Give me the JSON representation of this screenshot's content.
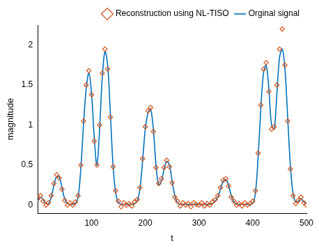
{
  "chart_data": {
    "type": "line",
    "x_label": "t",
    "y_label": "magnitude",
    "x": [
      0,
      5,
      10,
      15,
      20,
      25,
      30,
      35,
      40,
      45,
      50,
      55,
      60,
      65,
      70,
      75,
      80,
      85,
      90,
      95,
      100,
      105,
      110,
      115,
      120,
      125,
      130,
      135,
      140,
      145,
      150,
      155,
      160,
      165,
      170,
      175,
      180,
      185,
      190,
      195,
      200,
      205,
      210,
      215,
      220,
      225,
      230,
      235,
      240,
      245,
      250,
      255,
      260,
      265,
      270,
      275,
      280,
      285,
      290,
      295,
      300,
      305,
      310,
      315,
      320,
      325,
      330,
      335,
      340,
      345,
      350,
      355,
      360,
      365,
      370,
      375,
      380,
      385,
      390,
      395,
      400,
      405,
      410,
      415,
      420,
      425,
      430,
      435,
      440,
      445,
      450,
      455,
      460,
      465,
      470,
      475,
      480,
      485,
      490,
      495,
      500
    ],
    "series": [
      {
        "name": "Orginal signal",
        "type": "line",
        "color": "#0072bd",
        "line_style": "solid",
        "values": [
          0.05,
          0.1,
          0.07,
          0.02,
          0.02,
          0.1,
          0.25,
          0.36,
          0.35,
          0.22,
          0.08,
          0.02,
          0.01,
          0.01,
          0.02,
          0.1,
          0.45,
          1.0,
          1.45,
          1.65,
          1.4,
          0.85,
          0.5,
          0.95,
          1.6,
          1.92,
          1.75,
          1.15,
          0.5,
          0.15,
          0.03,
          0.01,
          0.01,
          0.01,
          0.01,
          0.01,
          0.02,
          0.05,
          0.2,
          0.55,
          0.95,
          1.15,
          1.2,
          0.95,
          0.5,
          0.25,
          0.3,
          0.45,
          0.55,
          0.5,
          0.3,
          0.12,
          0.03,
          0.01,
          0.01,
          0.01,
          0.01,
          0.01,
          0.01,
          0.01,
          0.01,
          0.01,
          0.01,
          0.01,
          0.01,
          0.02,
          0.05,
          0.1,
          0.2,
          0.3,
          0.32,
          0.25,
          0.12,
          0.04,
          0.01,
          0.01,
          0.01,
          0.01,
          0.01,
          0.01,
          0.02,
          0.15,
          0.6,
          1.2,
          1.65,
          1.75,
          1.45,
          1.0,
          0.95,
          1.4,
          1.85,
          1.95,
          1.7,
          1.1,
          0.5,
          0.15,
          0.04,
          0.05,
          0.08,
          0.04,
          0.02
        ]
      },
      {
        "name": "Reconstruction using NL-TISO",
        "type": "scatter",
        "color": "#d95319",
        "marker": "diamond",
        "values": [
          0.08,
          0.12,
          0.05,
          0.0,
          0.03,
          0.12,
          0.27,
          0.38,
          0.34,
          0.2,
          0.06,
          0.0,
          0.03,
          0.0,
          0.04,
          0.12,
          0.5,
          1.05,
          1.5,
          1.68,
          1.38,
          0.8,
          0.5,
          1.0,
          1.65,
          1.95,
          1.7,
          1.1,
          0.48,
          0.18,
          0.05,
          -0.02,
          0.03,
          0.0,
          0.02,
          -0.01,
          0.04,
          0.07,
          0.22,
          0.58,
          0.98,
          1.18,
          1.22,
          0.92,
          0.47,
          0.27,
          0.33,
          0.47,
          0.56,
          0.48,
          0.28,
          0.1,
          0.05,
          -0.01,
          0.03,
          0.0,
          0.02,
          -0.02,
          0.03,
          0.01,
          0.0,
          0.03,
          -0.01,
          0.02,
          0.0,
          0.04,
          0.07,
          0.12,
          0.22,
          0.31,
          0.33,
          0.24,
          0.1,
          0.05,
          0.0,
          0.02,
          -0.01,
          0.03,
          0.0,
          0.02,
          0.05,
          0.18,
          0.65,
          1.25,
          1.7,
          1.78,
          1.42,
          0.95,
          0.98,
          1.5,
          1.95,
          2.2,
          1.75,
          1.05,
          0.45,
          0.12,
          0.02,
          0.06,
          0.1,
          0.03,
          0.0
        ]
      }
    ],
    "xlim": [
      0,
      500
    ],
    "xticks": [
      100,
      200,
      300,
      400,
      500
    ],
    "ylim": [
      -0.1,
      2.25
    ],
    "yticks": [
      0,
      0.5,
      1,
      1.5,
      2
    ],
    "grid": false,
    "legend": "upper right"
  }
}
